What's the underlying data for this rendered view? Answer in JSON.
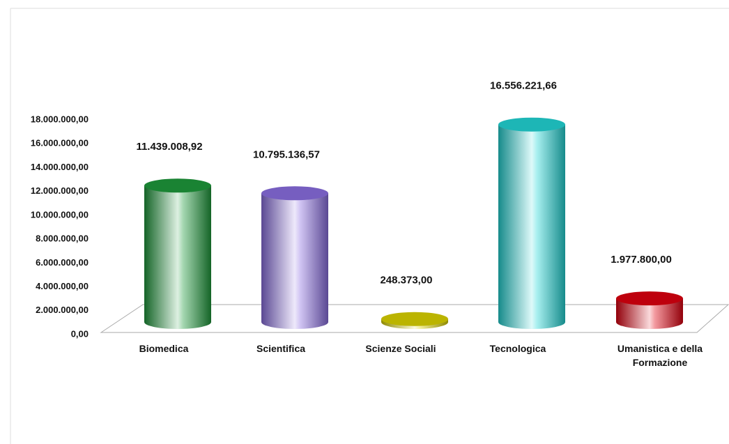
{
  "chart_data": {
    "type": "cylinder-bar",
    "categories": [
      "Biomedica",
      "Scientifica",
      "Scienze Sociali",
      "Tecnologica",
      "Umanistica e della Formazione"
    ],
    "series": [
      {
        "colors": [
          "#1f9a3c",
          "#8b6fe2",
          "#dcd400",
          "#22d6d6",
          "#e0000f"
        ],
        "values": [
          11439008.92,
          10795136.57,
          248373,
          16556221.66,
          1977800
        ],
        "value_labels": [
          "11.439.008,92",
          "10.795.136,57",
          "248.373,00",
          "16.556.221,66",
          "1.977.800,00"
        ]
      }
    ],
    "ylim": [
      0,
      18000000
    ],
    "yticks": [
      {
        "value": 0,
        "label": "0,00"
      },
      {
        "value": 2000000,
        "label": "2.000.000,00"
      },
      {
        "value": 4000000,
        "label": "4.000.000,00"
      },
      {
        "value": 6000000,
        "label": "6.000.000,00"
      },
      {
        "value": 8000000,
        "label": "8.000.000,00"
      },
      {
        "value": 10000000,
        "label": "10.000.000,00"
      },
      {
        "value": 12000000,
        "label": "12.000.000,00"
      },
      {
        "value": 14000000,
        "label": "14.000.000,00"
      },
      {
        "value": 16000000,
        "label": "16.000.000,00"
      },
      {
        "value": 18000000,
        "label": "18.000.000,00"
      }
    ]
  }
}
